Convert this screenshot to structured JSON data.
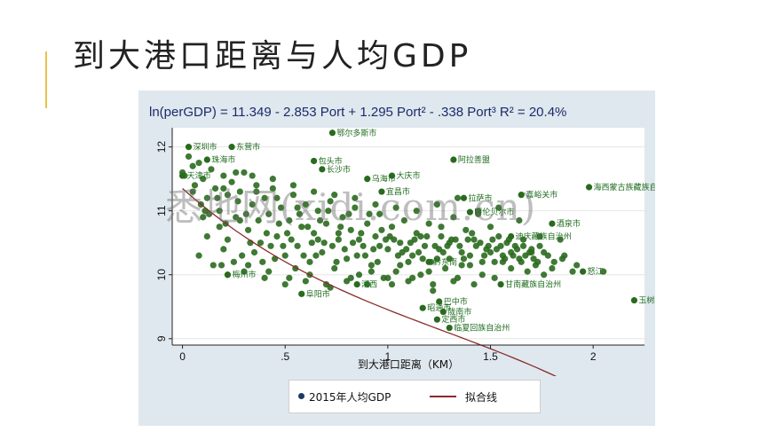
{
  "slide": {
    "title": "到大港口距离与人均GDP"
  },
  "chart_data": {
    "type": "scatter",
    "equation": "ln(perGDP) = 11.349 - 2.853 Port + 1.295 Port² - .338 Port³   R² = 20.4%",
    "xlabel": "到大港口距离（KM）",
    "ylabel": "",
    "xlim": [
      -0.05,
      2.25
    ],
    "ylim": [
      8.9,
      12.3
    ],
    "xticks": [
      0,
      0.5,
      1,
      1.5,
      2
    ],
    "xtick_labels": [
      "0",
      ".5",
      "1",
      "1.5",
      "2"
    ],
    "yticks": [
      9,
      10,
      11,
      12
    ],
    "ytick_labels": [
      "9",
      "10",
      "11",
      "12"
    ],
    "grid": true,
    "legend_position": "bottom",
    "series": [
      {
        "name": "2015年人均GDP",
        "kind": "points",
        "color": "#2a6a1e"
      },
      {
        "name": "拟合线",
        "kind": "line",
        "color": "#8b2a2a"
      }
    ],
    "fit": {
      "b0": 11.349,
      "b1": -2.853,
      "b2": 1.295,
      "b3": -0.338
    },
    "labeled_points": [
      {
        "label": "鄂尔多斯市",
        "x": 0.73,
        "y": 12.22
      },
      {
        "label": "深圳市",
        "x": 0.03,
        "y": 12.0
      },
      {
        "label": "东营市",
        "x": 0.24,
        "y": 12.0
      },
      {
        "label": "阿拉善盟",
        "x": 1.32,
        "y": 11.8
      },
      {
        "label": "包头市",
        "x": 0.64,
        "y": 11.78
      },
      {
        "label": "长沙市",
        "x": 0.68,
        "y": 11.65
      },
      {
        "label": "大庆市",
        "x": 1.02,
        "y": 11.55
      },
      {
        "label": "乌海市",
        "x": 0.9,
        "y": 11.5
      },
      {
        "label": "海西蒙古族藏族自治州",
        "x": 1.98,
        "y": 11.37
      },
      {
        "label": "嘉峪关市",
        "x": 1.65,
        "y": 11.25
      },
      {
        "label": "宜昌市",
        "x": 0.97,
        "y": 11.3
      },
      {
        "label": "酒泉市",
        "x": 1.8,
        "y": 10.8
      },
      {
        "label": "迪庆藏族自治州",
        "x": 1.6,
        "y": 10.6
      },
      {
        "label": "玉树藏族自治州",
        "x": 2.2,
        "y": 9.6
      },
      {
        "label": "巴中市",
        "x": 1.25,
        "y": 9.58
      },
      {
        "label": "昭通市",
        "x": 1.17,
        "y": 9.48
      },
      {
        "label": "定西市",
        "x": 1.24,
        "y": 9.3
      },
      {
        "label": "临夏回族自治州",
        "x": 1.3,
        "y": 9.17
      },
      {
        "label": "阜阳市",
        "x": 0.58,
        "y": 9.7
      }
    ],
    "points": [
      [
        0.0,
        11.6
      ],
      [
        0.01,
        11.55
      ],
      [
        0.03,
        11.85
      ],
      [
        0.05,
        11.7
      ],
      [
        0.06,
        11.4
      ],
      [
        0.08,
        11.75
      ],
      [
        0.1,
        11.5
      ],
      [
        0.12,
        11.2
      ],
      [
        0.14,
        11.65
      ],
      [
        0.16,
        11.35
      ],
      [
        0.18,
        11.0
      ],
      [
        0.2,
        11.55
      ],
      [
        0.22,
        11.25
      ],
      [
        0.24,
        11.45
      ],
      [
        0.26,
        10.9
      ],
      [
        0.28,
        11.3
      ],
      [
        0.3,
        11.6
      ],
      [
        0.32,
        10.7
      ],
      [
        0.34,
        11.1
      ],
      [
        0.36,
        11.4
      ],
      [
        0.38,
        10.5
      ],
      [
        0.4,
        11.2
      ],
      [
        0.42,
        10.95
      ],
      [
        0.44,
        11.5
      ],
      [
        0.46,
        10.6
      ],
      [
        0.48,
        11.05
      ],
      [
        0.5,
        10.3
      ],
      [
        0.52,
        10.85
      ],
      [
        0.54,
        11.25
      ],
      [
        0.56,
        10.45
      ],
      [
        0.58,
        10.75
      ],
      [
        0.6,
        11.1
      ],
      [
        0.62,
        10.2
      ],
      [
        0.64,
        10.65
      ],
      [
        0.66,
        11.0
      ],
      [
        0.68,
        10.35
      ],
      [
        0.7,
        10.8
      ],
      [
        0.72,
        11.15
      ],
      [
        0.74,
        10.1
      ],
      [
        0.76,
        10.55
      ],
      [
        0.78,
        10.9
      ],
      [
        0.8,
        10.25
      ],
      [
        0.82,
        10.7
      ],
      [
        0.84,
        11.05
      ],
      [
        0.86,
        10.0
      ],
      [
        0.88,
        10.45
      ],
      [
        0.9,
        10.8
      ],
      [
        0.92,
        10.15
      ],
      [
        0.94,
        10.6
      ],
      [
        0.96,
        10.95
      ],
      [
        0.98,
        9.95
      ],
      [
        1.0,
        10.4
      ],
      [
        1.02,
        10.75
      ],
      [
        1.04,
        10.05
      ],
      [
        1.06,
        10.5
      ],
      [
        1.08,
        10.85
      ],
      [
        1.1,
        9.9
      ],
      [
        1.12,
        10.3
      ],
      [
        1.14,
        10.65
      ],
      [
        1.16,
        10.0
      ],
      [
        1.18,
        10.45
      ],
      [
        1.2,
        10.8
      ],
      [
        1.22,
        9.85
      ],
      [
        1.24,
        10.25
      ],
      [
        1.26,
        10.6
      ],
      [
        1.28,
        10.1
      ],
      [
        1.3,
        10.5
      ],
      [
        1.32,
        10.9
      ],
      [
        1.34,
        9.95
      ],
      [
        1.36,
        10.35
      ],
      [
        1.38,
        10.7
      ],
      [
        1.4,
        10.15
      ],
      [
        1.42,
        10.55
      ],
      [
        1.44,
        10.95
      ],
      [
        1.46,
        10.0
      ],
      [
        1.48,
        10.4
      ],
      [
        1.5,
        10.75
      ],
      [
        1.52,
        10.2
      ],
      [
        1.54,
        10.6
      ],
      [
        1.56,
        10.3
      ],
      [
        1.58,
        10.5
      ],
      [
        1.6,
        10.1
      ],
      [
        1.62,
        10.45
      ],
      [
        1.64,
        10.25
      ],
      [
        1.66,
        10.55
      ],
      [
        1.68,
        10.05
      ],
      [
        1.7,
        10.35
      ],
      [
        1.72,
        10.15
      ],
      [
        1.74,
        10.45
      ],
      [
        1.76,
        10.0
      ],
      [
        1.78,
        10.3
      ],
      [
        1.8,
        10.1
      ],
      [
        1.85,
        10.25
      ],
      [
        1.9,
        10.05
      ],
      [
        0.15,
        10.15
      ],
      [
        0.2,
        10.4
      ],
      [
        0.25,
        10.2
      ],
      [
        0.3,
        10.05
      ],
      [
        0.35,
        10.35
      ],
      [
        0.4,
        9.95
      ],
      [
        0.45,
        10.25
      ],
      [
        0.5,
        9.85
      ],
      [
        0.55,
        10.1
      ],
      [
        0.6,
        9.9
      ],
      [
        0.65,
        10.3
      ],
      [
        0.7,
        9.85
      ],
      [
        0.75,
        10.2
      ],
      [
        0.8,
        9.9
      ],
      [
        0.85,
        10.3
      ],
      [
        0.9,
        9.85
      ],
      [
        0.95,
        10.2
      ],
      [
        1.0,
        9.95
      ],
      [
        1.05,
        10.3
      ],
      [
        1.1,
        10.2
      ],
      [
        1.15,
        10.35
      ],
      [
        1.2,
        10.05
      ],
      [
        1.25,
        10.4
      ],
      [
        1.3,
        10.25
      ],
      [
        1.35,
        10.45
      ],
      [
        1.4,
        10.3
      ],
      [
        1.45,
        10.5
      ],
      [
        1.5,
        10.35
      ],
      [
        1.55,
        10.45
      ],
      [
        1.6,
        10.35
      ],
      [
        1.65,
        10.2
      ],
      [
        1.7,
        10.4
      ],
      [
        0.1,
        10.9
      ],
      [
        0.12,
        10.6
      ],
      [
        0.18,
        10.75
      ],
      [
        0.22,
        10.55
      ],
      [
        0.28,
        10.85
      ],
      [
        0.33,
        10.5
      ],
      [
        0.37,
        10.85
      ],
      [
        0.43,
        10.45
      ],
      [
        0.47,
        10.8
      ],
      [
        0.53,
        10.55
      ],
      [
        0.57,
        10.95
      ],
      [
        0.63,
        10.5
      ],
      [
        0.67,
        10.85
      ],
      [
        0.73,
        10.45
      ],
      [
        0.77,
        10.75
      ],
      [
        0.83,
        10.5
      ],
      [
        0.87,
        10.65
      ],
      [
        0.93,
        10.4
      ],
      [
        0.97,
        10.7
      ],
      [
        1.03,
        10.55
      ],
      [
        1.07,
        10.35
      ],
      [
        1.13,
        10.55
      ],
      [
        1.17,
        10.25
      ],
      [
        1.23,
        10.45
      ],
      [
        1.27,
        10.35
      ],
      [
        1.33,
        10.55
      ],
      [
        1.37,
        10.25
      ],
      [
        1.43,
        10.45
      ],
      [
        1.47,
        10.3
      ],
      [
        1.53,
        10.4
      ],
      [
        1.57,
        10.25
      ],
      [
        1.63,
        10.4
      ],
      [
        1.67,
        10.3
      ],
      [
        1.73,
        10.2
      ],
      [
        0.05,
        11.3
      ],
      [
        0.09,
        11.1
      ],
      [
        0.13,
        10.95
      ],
      [
        0.17,
        11.2
      ],
      [
        0.21,
        10.8
      ],
      [
        0.27,
        11.15
      ],
      [
        0.31,
        10.95
      ],
      [
        0.36,
        11.3
      ],
      [
        0.41,
        10.65
      ],
      [
        0.46,
        11.2
      ],
      [
        0.51,
        10.65
      ],
      [
        0.56,
        11.05
      ],
      [
        0.61,
        10.75
      ],
      [
        0.66,
        10.55
      ],
      [
        0.71,
        11.0
      ],
      [
        0.76,
        10.65
      ],
      [
        0.81,
        10.95
      ],
      [
        0.86,
        10.55
      ],
      [
        0.91,
        10.95
      ],
      [
        0.96,
        10.45
      ],
      [
        1.01,
        10.6
      ],
      [
        1.06,
        10.15
      ],
      [
        1.11,
        10.5
      ],
      [
        1.16,
        10.6
      ],
      [
        1.21,
        10.2
      ],
      [
        1.26,
        10.75
      ],
      [
        1.31,
        10.55
      ],
      [
        1.36,
        10.15
      ],
      [
        1.41,
        10.65
      ],
      [
        1.46,
        10.2
      ],
      [
        1.51,
        10.55
      ],
      [
        1.56,
        10.2
      ],
      [
        1.61,
        10.3
      ],
      [
        1.66,
        10.45
      ],
      [
        1.71,
        10.25
      ],
      [
        1.76,
        10.35
      ],
      [
        1.81,
        10.2
      ],
      [
        1.86,
        10.3
      ],
      [
        1.92,
        10.15
      ],
      [
        2.05,
        10.05
      ],
      [
        0.22,
        10.0
      ],
      [
        0.32,
        10.15
      ],
      [
        0.42,
        10.05
      ],
      [
        0.52,
        9.95
      ],
      [
        0.62,
        10.0
      ],
      [
        0.72,
        9.8
      ],
      [
        0.82,
        9.95
      ],
      [
        0.92,
        10.05
      ],
      [
        1.02,
        9.85
      ],
      [
        1.12,
        9.95
      ],
      [
        1.22,
        9.75
      ],
      [
        1.32,
        9.9
      ],
      [
        1.42,
        9.85
      ],
      [
        1.52,
        9.95
      ],
      [
        0.19,
        10.15
      ],
      [
        0.29,
        10.3
      ],
      [
        0.39,
        10.2
      ],
      [
        0.49,
        10.45
      ],
      [
        0.59,
        10.3
      ],
      [
        0.69,
        10.5
      ],
      [
        0.79,
        10.4
      ],
      [
        0.89,
        10.3
      ],
      [
        0.99,
        10.55
      ],
      [
        1.09,
        10.4
      ],
      [
        1.19,
        10.6
      ],
      [
        1.29,
        10.45
      ],
      [
        1.39,
        10.55
      ],
      [
        1.49,
        10.45
      ],
      [
        1.59,
        10.55
      ],
      [
        1.69,
        10.35
      ],
      [
        0.08,
        10.3
      ],
      [
        0.11,
        11.0
      ],
      [
        0.2,
        11.35
      ],
      [
        0.26,
        11.6
      ],
      [
        0.34,
        11.55
      ],
      [
        0.44,
        11.35
      ],
      [
        0.54,
        11.4
      ],
      [
        0.64,
        11.3
      ],
      [
        0.74,
        11.25
      ],
      [
        0.84,
        11.2
      ],
      [
        0.94,
        11.1
      ],
      [
        1.04,
        11.05
      ],
      [
        1.14,
        11.0
      ],
      [
        1.24,
        11.1
      ],
      [
        1.34,
        11.2
      ],
      [
        1.44,
        11.0
      ],
      [
        1.54,
        11.05
      ],
      [
        1.64,
        10.85
      ],
      [
        1.74,
        10.6
      ],
      [
        1.84,
        10.55
      ]
    ],
    "dense_labels": [
      {
        "label": "天津市",
        "x": 0.0,
        "y": 11.55
      },
      {
        "label": "珠海市",
        "x": 0.12,
        "y": 11.8
      },
      {
        "label": "拉萨市",
        "x": 1.37,
        "y": 11.2
      },
      {
        "label": "呼伦贝尔市",
        "x": 1.4,
        "y": 10.98
      },
      {
        "label": "梅州市",
        "x": 0.22,
        "y": 10.0
      },
      {
        "label": "湘西",
        "x": 0.85,
        "y": 9.85
      },
      {
        "label": "陇南市",
        "x": 1.27,
        "y": 9.42
      },
      {
        "label": "甘南藏族自治州",
        "x": 1.55,
        "y": 9.85
      },
      {
        "label": "黔东南",
        "x": 1.2,
        "y": 10.2
      },
      {
        "label": "怒江",
        "x": 1.95,
        "y": 10.05
      }
    ]
  },
  "watermark": "悉地网(xidi.com.cn)"
}
